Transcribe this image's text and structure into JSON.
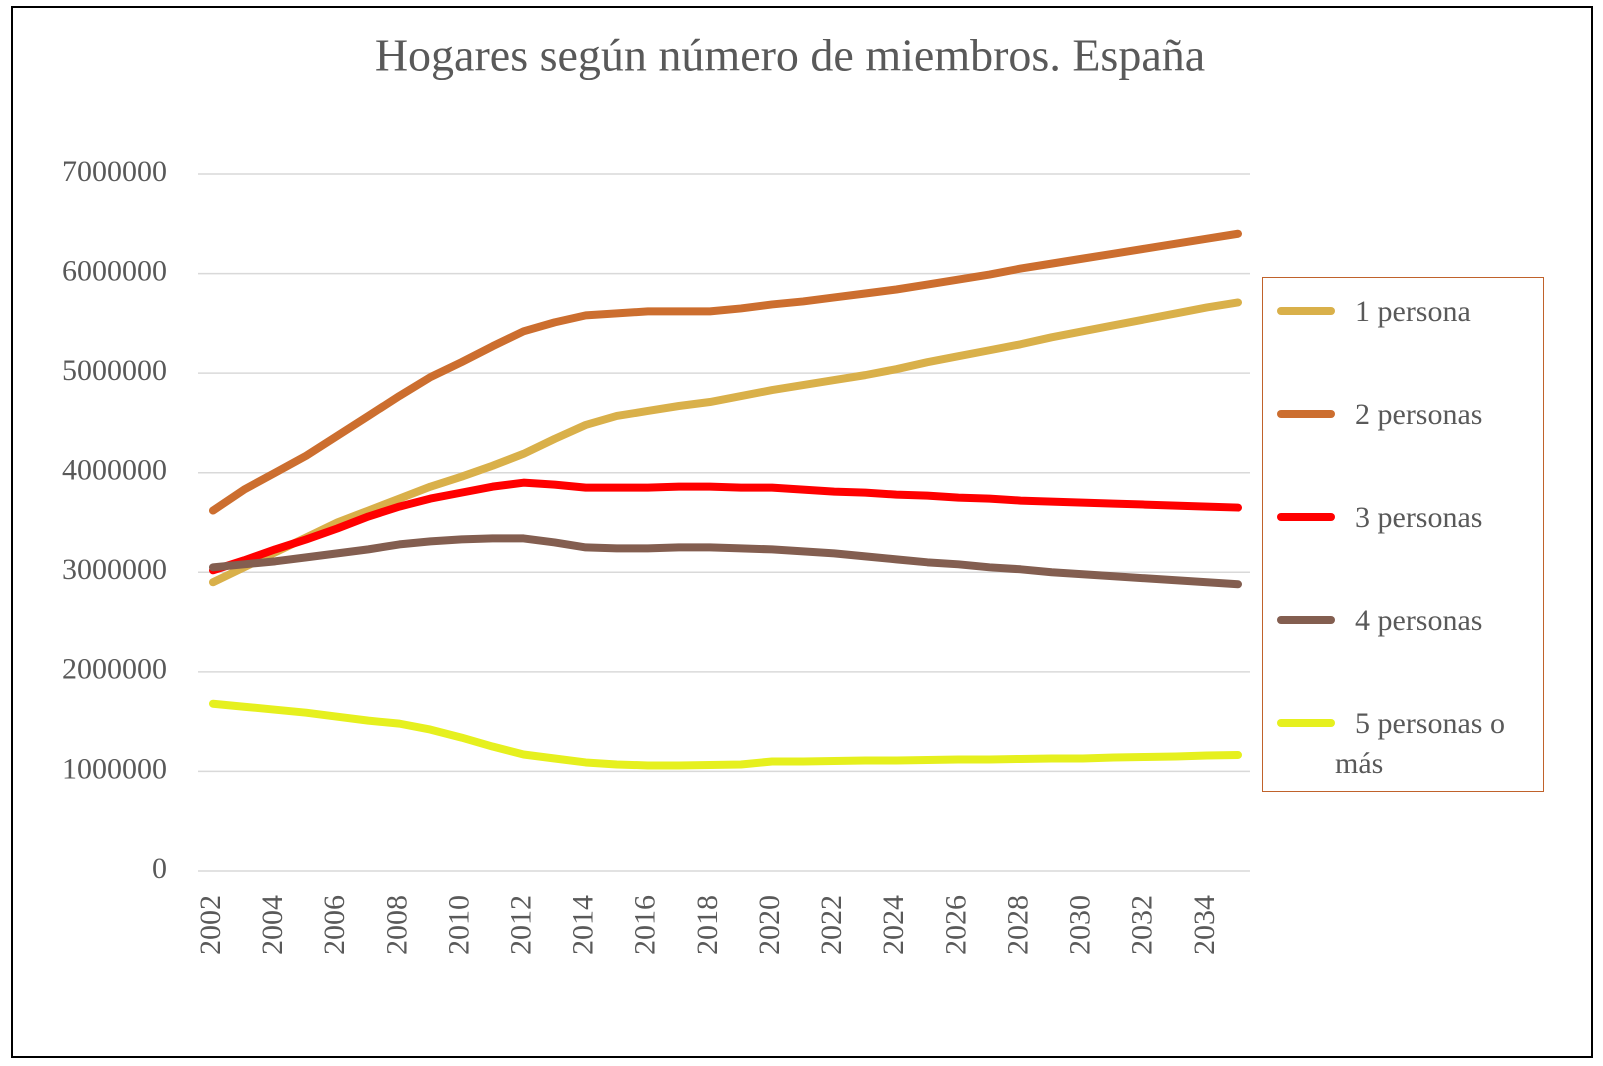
{
  "chart_data": {
    "type": "line",
    "title": "Hogares según número de miembros. España",
    "x": [
      2002,
      2003,
      2004,
      2005,
      2006,
      2007,
      2008,
      2009,
      2010,
      2011,
      2012,
      2013,
      2014,
      2015,
      2016,
      2017,
      2018,
      2019,
      2020,
      2021,
      2022,
      2023,
      2024,
      2025,
      2026,
      2027,
      2028,
      2029,
      2030,
      2031,
      2032,
      2033,
      2034,
      2035
    ],
    "xlim": [
      2002,
      2035
    ],
    "xticks": [
      2002,
      2004,
      2006,
      2008,
      2010,
      2012,
      2014,
      2016,
      2018,
      2020,
      2022,
      2024,
      2026,
      2028,
      2030,
      2032,
      2034
    ],
    "ylim": [
      0,
      7000000
    ],
    "yticks": [
      0,
      1000000,
      2000000,
      3000000,
      4000000,
      5000000,
      6000000,
      7000000
    ],
    "grid": true,
    "legend": "right",
    "series": [
      {
        "name": "1 persona",
        "color": "#D9B04A",
        "values": [
          2900000,
          3050000,
          3200000,
          3350000,
          3500000,
          3620000,
          3740000,
          3860000,
          3960000,
          4070000,
          4190000,
          4340000,
          4480000,
          4570000,
          4620000,
          4670000,
          4710000,
          4770000,
          4830000,
          4880000,
          4930000,
          4980000,
          5040000,
          5110000,
          5170000,
          5230000,
          5290000,
          5360000,
          5420000,
          5480000,
          5540000,
          5600000,
          5660000,
          5710000
        ]
      },
      {
        "name": "2 personas",
        "color": "#CC6E2F",
        "values": [
          3620000,
          3830000,
          4000000,
          4170000,
          4370000,
          4570000,
          4770000,
          4960000,
          5110000,
          5270000,
          5420000,
          5510000,
          5580000,
          5600000,
          5620000,
          5620000,
          5620000,
          5650000,
          5690000,
          5720000,
          5760000,
          5800000,
          5840000,
          5890000,
          5940000,
          5990000,
          6050000,
          6100000,
          6150000,
          6200000,
          6250000,
          6300000,
          6350000,
          6400000
        ]
      },
      {
        "name": "3 personas",
        "color": "#FF0000",
        "values": [
          3020000,
          3120000,
          3230000,
          3330000,
          3440000,
          3560000,
          3660000,
          3740000,
          3800000,
          3860000,
          3900000,
          3880000,
          3850000,
          3850000,
          3850000,
          3860000,
          3860000,
          3850000,
          3850000,
          3830000,
          3810000,
          3800000,
          3780000,
          3770000,
          3750000,
          3740000,
          3720000,
          3710000,
          3700000,
          3690000,
          3680000,
          3670000,
          3660000,
          3650000
        ]
      },
      {
        "name": "4 personas",
        "color": "#835E50",
        "values": [
          3050000,
          3080000,
          3110000,
          3150000,
          3190000,
          3230000,
          3280000,
          3310000,
          3330000,
          3340000,
          3340000,
          3300000,
          3250000,
          3240000,
          3240000,
          3250000,
          3250000,
          3240000,
          3230000,
          3210000,
          3190000,
          3160000,
          3130000,
          3100000,
          3080000,
          3050000,
          3030000,
          3000000,
          2980000,
          2960000,
          2940000,
          2920000,
          2900000,
          2880000
        ]
      },
      {
        "name": "5 personas o más",
        "color": "#E6F01E",
        "values": [
          1680000,
          1650000,
          1620000,
          1590000,
          1550000,
          1510000,
          1480000,
          1420000,
          1340000,
          1250000,
          1170000,
          1130000,
          1090000,
          1070000,
          1060000,
          1060000,
          1065000,
          1070000,
          1100000,
          1100000,
          1105000,
          1110000,
          1110000,
          1115000,
          1120000,
          1120000,
          1125000,
          1130000,
          1130000,
          1140000,
          1145000,
          1150000,
          1160000,
          1165000
        ]
      }
    ]
  }
}
